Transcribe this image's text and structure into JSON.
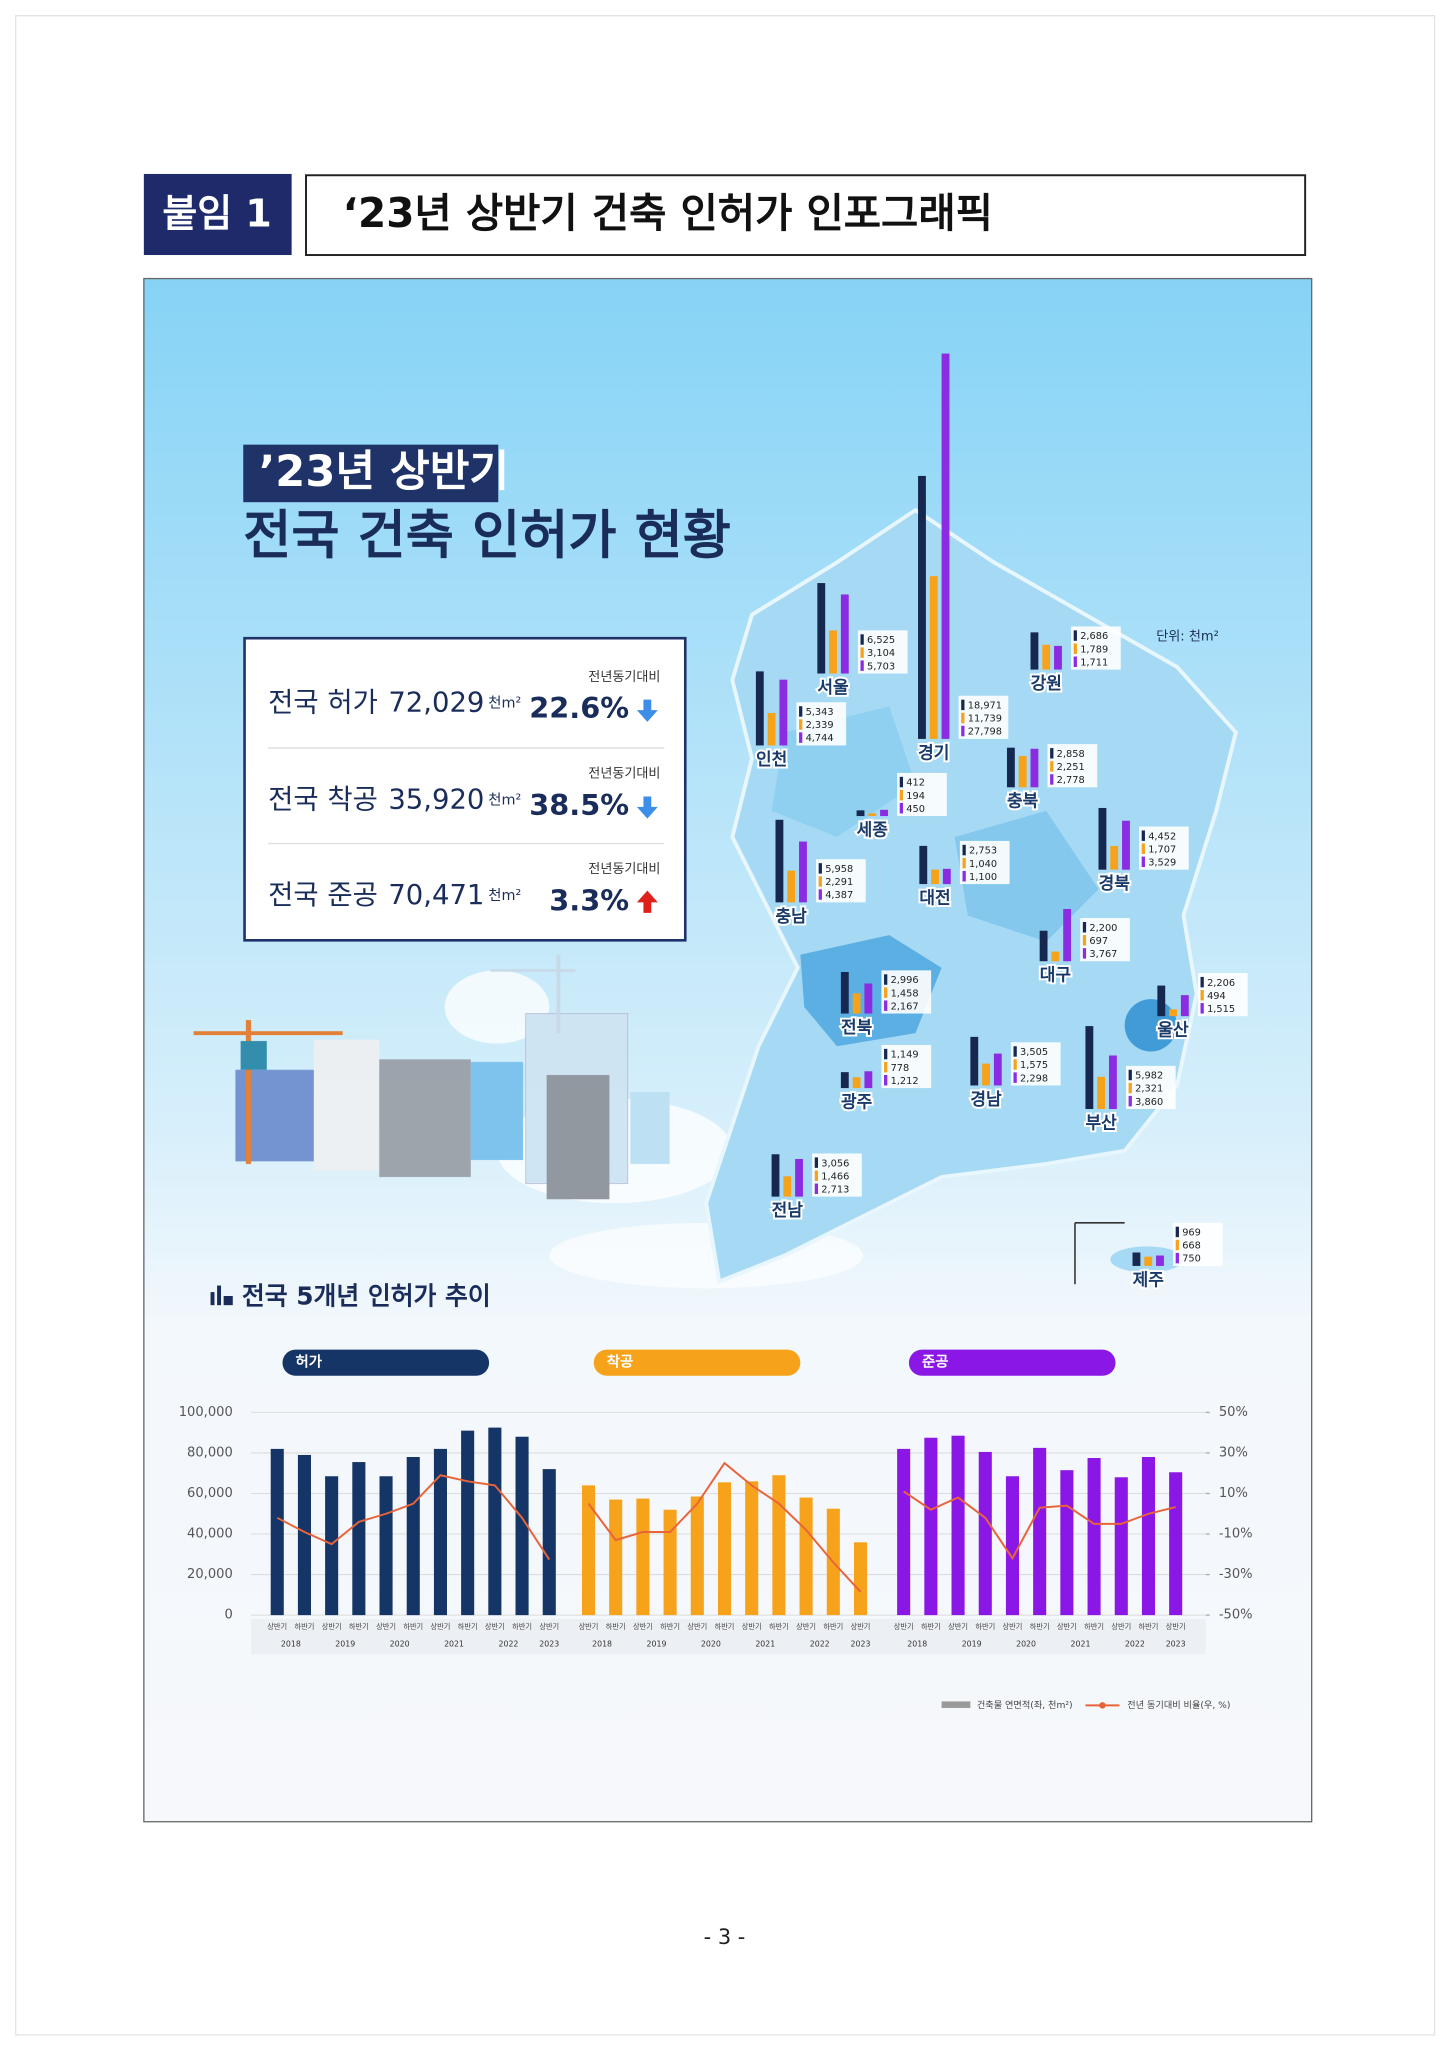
{
  "header": {
    "badge": "붙임 1",
    "title": "‘23년 상반기 건축 인허가 인포그래픽"
  },
  "infographic": {
    "title_line1": "’23년 상반기",
    "title_line2": "전국 건축 인허가 현황",
    "summary": [
      {
        "label": "전국 허가",
        "value": "72,029",
        "unit": "천m²",
        "compare_label": "전년동기대비",
        "change": "22.6%",
        "direction": "down"
      },
      {
        "label": "전국 착공",
        "value": "35,920",
        "unit": "천m²",
        "compare_label": "전년동기대비",
        "change": "38.5%",
        "direction": "down"
      },
      {
        "label": "전국 준공",
        "value": "70,471",
        "unit": "천m²",
        "compare_label": "전년동기대비",
        "change": "3.3%",
        "direction": "up"
      }
    ]
  },
  "chart_data": [
    {
      "type": "regional-bar",
      "unit_label": "단위: 천m²",
      "categories": [
        "서울",
        "인천",
        "경기",
        "강원",
        "세종",
        "충북",
        "충남",
        "대전",
        "경북",
        "대구",
        "울산",
        "전북",
        "경남",
        "부산",
        "광주",
        "전남",
        "제주"
      ],
      "series": [
        {
          "color": "#16284f",
          "values": [
            6525,
            5343,
            18971,
            2686,
            412,
            2858,
            5958,
            2753,
            4452,
            2200,
            2206,
            2996,
            3505,
            5982,
            1149,
            3056,
            969
          ],
          "value_labels": [
            "6,525",
            "5,343",
            "18,971",
            "2,686",
            "412",
            "2,858",
            "5,958",
            "2,753",
            "4,452",
            "2,200",
            "2,206",
            "2,996",
            "3,505",
            "5,982",
            "1,149",
            "3,056",
            "969"
          ]
        },
        {
          "color": "#f7a21b",
          "values": [
            3104,
            2339,
            11739,
            1789,
            194,
            2251,
            2291,
            1040,
            1707,
            697,
            494,
            1458,
            1575,
            2321,
            778,
            1466,
            668
          ],
          "value_labels": [
            "3,104",
            "2,339",
            "11,739",
            "1,789",
            "194",
            "2,251",
            "2,291",
            "1,040",
            "1,707",
            "697",
            "494",
            "1,458",
            "1,575",
            "2,321",
            "778",
            "1,466",
            "668"
          ]
        },
        {
          "color": "#8b2be2",
          "values": [
            5703,
            4744,
            27798,
            1711,
            450,
            2778,
            4387,
            1100,
            3529,
            3767,
            1515,
            2167,
            2298,
            3860,
            1212,
            2713,
            750
          ],
          "value_labels": [
            "5,703",
            "4,744",
            "27,798",
            "1,711",
            "450",
            "2,778",
            "4,387",
            "1,100",
            "3,529",
            "3,767",
            "1,515",
            "2,167",
            "2,298",
            "3,860",
            "1,212",
            "2,713",
            "750"
          ]
        }
      ]
    },
    {
      "type": "bar-line",
      "title": "전국 5개년 인허가 추이",
      "categories": [
        "상반기",
        "하반기",
        "상반기",
        "하반기",
        "상반기",
        "하반기",
        "상반기",
        "하반기",
        "상반기",
        "하반기",
        "상반기"
      ],
      "years": [
        "2018",
        "2019",
        "2020",
        "2021",
        "2022",
        "2023"
      ],
      "series": [
        {
          "name": "허가",
          "color": "#143566",
          "values": [
            82000,
            79000,
            68500,
            75500,
            68500,
            78000,
            82000,
            91000,
            92500,
            88000,
            72029
          ]
        },
        {
          "name": "착공",
          "color": "#f7a21b",
          "values": [
            64000,
            57000,
            57500,
            52000,
            58500,
            65500,
            66000,
            69000,
            58000,
            52500,
            35920
          ]
        },
        {
          "name": "준공",
          "color": "#8b17e6",
          "values": [
            82000,
            87500,
            88500,
            80500,
            68500,
            82500,
            71500,
            77500,
            68000,
            78000,
            70471
          ]
        }
      ],
      "line_series": [
        {
          "axis": "y2",
          "color": "#e9633a",
          "values": [
            -2,
            -9,
            -15,
            -4,
            0,
            5,
            19,
            16,
            14,
            -2,
            -22.6
          ]
        },
        {
          "axis": "y2",
          "color": "#e9633a",
          "values": [
            5,
            -13,
            -9,
            -9,
            5,
            25,
            14,
            5,
            -8,
            -24,
            -38.5
          ]
        },
        {
          "axis": "y2",
          "color": "#e9633a",
          "values": [
            11,
            2,
            8,
            -2,
            -22,
            3,
            4,
            -5,
            -5,
            0,
            3.3
          ]
        }
      ],
      "ylim": [
        0,
        100000
      ],
      "yticks": [
        0,
        {
          "value": 20000,
          "label": "20,000"
        },
        {
          "value": 40000,
          "label": "40,000"
        },
        {
          "value": 60000,
          "label": "60,000"
        },
        {
          "value": 80000,
          "label": "80,000"
        },
        {
          "value": 100000,
          "label": "100,000"
        }
      ],
      "y2lim": [
        -50,
        50
      ],
      "y2ticks": [
        {
          "value": -50,
          "label": "-50%"
        },
        {
          "value": -30,
          "label": "-30%"
        },
        {
          "value": -10,
          "label": "-10%"
        },
        {
          "value": 10,
          "label": "10%"
        },
        {
          "value": 30,
          "label": "30%"
        },
        {
          "value": 50,
          "label": "50%"
        }
      ],
      "grid": true,
      "legend": [
        {
          "label": "건축물 연면적(좌, 천m²)",
          "color": "#9a9a9a"
        },
        {
          "label": "전년 동기대비 비율(우, %)",
          "color": "#e9633a"
        }
      ]
    }
  ],
  "page_number": "- 3 -"
}
